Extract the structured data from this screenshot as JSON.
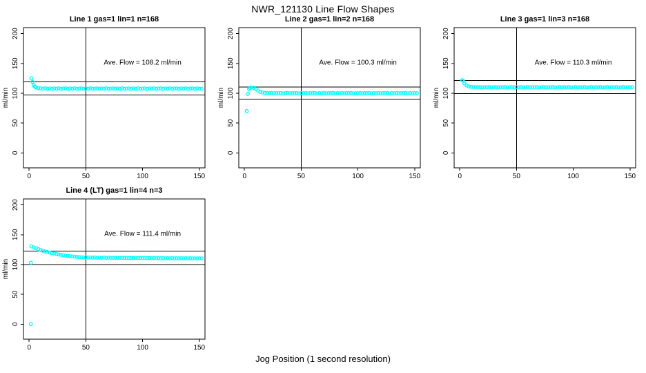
{
  "figure": {
    "title": "NWR_121130  Line Flow Shapes",
    "xlabel": "Jog Position (1 second resolution)",
    "background": "#ffffff",
    "point_color": "#00ffff",
    "axis_color": "#000000"
  },
  "chart_data": [
    {
      "type": "scatter",
      "title": "Line 1 gas=1 lin=1 n=168",
      "ylabel": "ml/min",
      "annotation": "Ave. Flow =  108.2  ml/min",
      "ave_flow": 108.2,
      "n": 168,
      "xticks": [
        0,
        50,
        100,
        150
      ],
      "yticks": [
        0,
        50,
        100,
        150,
        200
      ],
      "xlim": [
        -5,
        155
      ],
      "ylim": [
        -25,
        210
      ],
      "ref_lines": [
        97.4,
        119.0
      ],
      "vline": 50,
      "annotation_pos": [
        100,
        148
      ],
      "points": [
        [
          2,
          125
        ],
        [
          3,
          119
        ],
        [
          4,
          113.5
        ],
        [
          5,
          111.2
        ],
        [
          6,
          110
        ],
        [
          8,
          108.6
        ],
        [
          10,
          108.1
        ],
        [
          12,
          107.9
        ],
        [
          14,
          108.2
        ],
        [
          16,
          107.6
        ],
        [
          18,
          108
        ],
        [
          20,
          107.5
        ],
        [
          22,
          108.1
        ],
        [
          24,
          107.8
        ],
        [
          26,
          108.3
        ],
        [
          28,
          107.5
        ],
        [
          30,
          107.9
        ],
        [
          32,
          108.2
        ],
        [
          34,
          107.6
        ],
        [
          36,
          108
        ],
        [
          38,
          107.7
        ],
        [
          40,
          108.2
        ],
        [
          42,
          107.5
        ],
        [
          44,
          107.9
        ],
        [
          46,
          108.1
        ],
        [
          48,
          107.6
        ],
        [
          50,
          108
        ],
        [
          52,
          107.8
        ],
        [
          54,
          108.2
        ],
        [
          56,
          107.5
        ],
        [
          58,
          107.9
        ],
        [
          60,
          108.1
        ],
        [
          62,
          107.6
        ],
        [
          64,
          108
        ],
        [
          66,
          107.7
        ],
        [
          68,
          108.2
        ],
        [
          70,
          107.5
        ],
        [
          72,
          107.9
        ],
        [
          74,
          108.1
        ],
        [
          76,
          107.6
        ],
        [
          78,
          108
        ],
        [
          80,
          107.8
        ],
        [
          82,
          108.2
        ],
        [
          84,
          107.5
        ],
        [
          86,
          107.9
        ],
        [
          88,
          108.1
        ],
        [
          90,
          107.6
        ],
        [
          92,
          108
        ],
        [
          94,
          107.7
        ],
        [
          96,
          108.2
        ],
        [
          98,
          107.5
        ],
        [
          100,
          107.9
        ],
        [
          102,
          108.1
        ],
        [
          104,
          107.6
        ],
        [
          106,
          108
        ],
        [
          108,
          107.8
        ],
        [
          110,
          108.2
        ],
        [
          112,
          107.5
        ],
        [
          114,
          107.9
        ],
        [
          116,
          108.1
        ],
        [
          118,
          107.6
        ],
        [
          120,
          108
        ],
        [
          122,
          107.7
        ],
        [
          124,
          108.2
        ],
        [
          126,
          107.5
        ],
        [
          128,
          107.9
        ],
        [
          130,
          108.1
        ],
        [
          132,
          107.6
        ],
        [
          134,
          108
        ],
        [
          136,
          107.8
        ],
        [
          138,
          108.2
        ],
        [
          140,
          107.5
        ],
        [
          142,
          107.9
        ],
        [
          144,
          108.1
        ],
        [
          146,
          107.6
        ],
        [
          148,
          108
        ],
        [
          150,
          107.7
        ],
        [
          152,
          107.8
        ]
      ]
    },
    {
      "type": "scatter",
      "title": "Line 2 gas=1 lin=2 n=168",
      "ylabel": "ml/min",
      "annotation": "Ave. Flow =  100.3  ml/min",
      "ave_flow": 100.3,
      "n": 168,
      "xticks": [
        0,
        50,
        100,
        150
      ],
      "yticks": [
        0,
        50,
        100,
        150,
        200
      ],
      "xlim": [
        -5,
        155
      ],
      "ylim": [
        -25,
        210
      ],
      "ref_lines": [
        90.3,
        110.3
      ],
      "vline": 50,
      "annotation_pos": [
        100,
        148
      ],
      "points": [
        [
          2,
          70
        ],
        [
          3,
          99
        ],
        [
          4,
          107
        ],
        [
          5,
          109
        ],
        [
          6,
          109.5
        ],
        [
          8,
          109
        ],
        [
          10,
          107
        ],
        [
          12,
          104.5
        ],
        [
          14,
          102.5
        ],
        [
          16,
          101.3
        ],
        [
          18,
          100.7
        ],
        [
          20,
          100.4
        ],
        [
          22,
          100.1
        ],
        [
          24,
          100.5
        ],
        [
          26,
          99.9
        ],
        [
          28,
          100.3
        ],
        [
          30,
          100
        ],
        [
          32,
          100.4
        ],
        [
          34,
          99.8
        ],
        [
          36,
          100.2
        ],
        [
          38,
          100.5
        ],
        [
          40,
          99.9
        ],
        [
          42,
          100.3
        ],
        [
          44,
          100.1
        ],
        [
          46,
          100.4
        ],
        [
          48,
          99.8
        ],
        [
          50,
          100.2
        ],
        [
          52,
          100
        ],
        [
          54,
          100.4
        ],
        [
          56,
          99.9
        ],
        [
          58,
          100.3
        ],
        [
          60,
          100.1
        ],
        [
          62,
          100.5
        ],
        [
          64,
          99.8
        ],
        [
          66,
          100.2
        ],
        [
          68,
          100
        ],
        [
          70,
          100.4
        ],
        [
          72,
          99.9
        ],
        [
          74,
          100.3
        ],
        [
          76,
          100.1
        ],
        [
          78,
          100.5
        ],
        [
          80,
          99.8
        ],
        [
          82,
          100.2
        ],
        [
          84,
          100
        ],
        [
          86,
          100.4
        ],
        [
          88,
          99.9
        ],
        [
          90,
          100.3
        ],
        [
          92,
          100.1
        ],
        [
          94,
          100.5
        ],
        [
          96,
          99.8
        ],
        [
          98,
          100.2
        ],
        [
          100,
          100
        ],
        [
          102,
          100.4
        ],
        [
          104,
          99.9
        ],
        [
          106,
          100.3
        ],
        [
          108,
          100.1
        ],
        [
          110,
          100.5
        ],
        [
          112,
          99.8
        ],
        [
          114,
          100.2
        ],
        [
          116,
          100
        ],
        [
          118,
          100.4
        ],
        [
          120,
          99.9
        ],
        [
          122,
          100.3
        ],
        [
          124,
          100.1
        ],
        [
          126,
          100.5
        ],
        [
          128,
          99.8
        ],
        [
          130,
          100.2
        ],
        [
          132,
          100
        ],
        [
          134,
          100.4
        ],
        [
          136,
          99.9
        ],
        [
          138,
          100.3
        ],
        [
          140,
          100.1
        ],
        [
          142,
          100.5
        ],
        [
          144,
          99.8
        ],
        [
          146,
          100.2
        ],
        [
          148,
          100
        ],
        [
          150,
          100.3
        ],
        [
          152,
          100.1
        ]
      ]
    },
    {
      "type": "scatter",
      "title": "Line 3 gas=1 lin=3 n=168",
      "ylabel": "ml/min",
      "annotation": "Ave. Flow =  110.3  ml/min",
      "ave_flow": 110.3,
      "n": 168,
      "xticks": [
        0,
        50,
        100,
        150
      ],
      "yticks": [
        0,
        50,
        100,
        150,
        200
      ],
      "xlim": [
        -5,
        155
      ],
      "ylim": [
        -25,
        210
      ],
      "ref_lines": [
        99.3,
        121.3
      ],
      "vline": 50,
      "annotation_pos": [
        100,
        148
      ],
      "points": [
        [
          2,
          122
        ],
        [
          3,
          121
        ],
        [
          4,
          116.5
        ],
        [
          6,
          113
        ],
        [
          8,
          111.5
        ],
        [
          10,
          110.8
        ],
        [
          12,
          110.4
        ],
        [
          14,
          110.6
        ],
        [
          16,
          110.1
        ],
        [
          18,
          110.4
        ],
        [
          20,
          109.9
        ],
        [
          22,
          110.3
        ],
        [
          24,
          110.1
        ],
        [
          26,
          110.5
        ],
        [
          28,
          109.8
        ],
        [
          30,
          110.2
        ],
        [
          32,
          110.4
        ],
        [
          34,
          109.9
        ],
        [
          36,
          110.3
        ],
        [
          38,
          110
        ],
        [
          40,
          110.4
        ],
        [
          42,
          109.8
        ],
        [
          44,
          110.2
        ],
        [
          46,
          110.5
        ],
        [
          48,
          109.9
        ],
        [
          50,
          110.3
        ],
        [
          52,
          110.1
        ],
        [
          54,
          110.4
        ],
        [
          56,
          109.8
        ],
        [
          58,
          110.2
        ],
        [
          60,
          110.5
        ],
        [
          62,
          109.9
        ],
        [
          64,
          110.3
        ],
        [
          66,
          110
        ],
        [
          68,
          110.4
        ],
        [
          70,
          109.8
        ],
        [
          72,
          110.2
        ],
        [
          74,
          110.5
        ],
        [
          76,
          109.9
        ],
        [
          78,
          110.3
        ],
        [
          80,
          110.1
        ],
        [
          82,
          110.4
        ],
        [
          84,
          109.8
        ],
        [
          86,
          110.2
        ],
        [
          88,
          110.5
        ],
        [
          90,
          109.9
        ],
        [
          92,
          110.3
        ],
        [
          94,
          110
        ],
        [
          96,
          110.4
        ],
        [
          98,
          109.8
        ],
        [
          100,
          110.2
        ],
        [
          102,
          110.5
        ],
        [
          104,
          109.9
        ],
        [
          106,
          110.3
        ],
        [
          108,
          110.1
        ],
        [
          110,
          110.4
        ],
        [
          112,
          109.8
        ],
        [
          114,
          110.2
        ],
        [
          116,
          110.5
        ],
        [
          118,
          109.9
        ],
        [
          120,
          110.3
        ],
        [
          122,
          110
        ],
        [
          124,
          110.4
        ],
        [
          126,
          109.8
        ],
        [
          128,
          110.2
        ],
        [
          130,
          110.5
        ],
        [
          132,
          109.9
        ],
        [
          134,
          110.3
        ],
        [
          136,
          110.1
        ],
        [
          138,
          110.4
        ],
        [
          140,
          109.8
        ],
        [
          142,
          110.2
        ],
        [
          144,
          110.5
        ],
        [
          146,
          109.9
        ],
        [
          148,
          110.3
        ],
        [
          150,
          110
        ],
        [
          152,
          110.2
        ]
      ]
    },
    {
      "type": "scatter",
      "title": "Line 4 (LT) gas=1 lin=4 n=3",
      "ylabel": "ml/min",
      "annotation": "Ave. Flow =  111.4  ml/min",
      "ave_flow": 111.4,
      "n": 3,
      "xticks": [
        0,
        50,
        100,
        150
      ],
      "yticks": [
        0,
        50,
        100,
        150,
        200
      ],
      "xlim": [
        -5,
        155
      ],
      "ylim": [
        -25,
        210
      ],
      "ref_lines": [
        100.3,
        122.5
      ],
      "vline": 50,
      "annotation_pos": [
        100,
        148
      ],
      "points": [
        [
          1.5,
          0
        ],
        [
          1.5,
          103
        ],
        [
          2,
          130.5
        ],
        [
          4,
          128.9
        ],
        [
          6,
          127.3
        ],
        [
          8,
          125.9
        ],
        [
          10,
          124.6
        ],
        [
          12,
          123.4
        ],
        [
          14,
          122.2
        ],
        [
          16,
          121.2
        ],
        [
          18,
          120.2
        ],
        [
          20,
          119.3
        ],
        [
          22,
          118.5
        ],
        [
          24,
          117.7
        ],
        [
          26,
          117
        ],
        [
          28,
          116.3
        ],
        [
          30,
          115.7
        ],
        [
          32,
          115.1
        ],
        [
          34,
          114.6
        ],
        [
          36,
          114.1
        ],
        [
          38,
          113.7
        ],
        [
          40,
          113.3
        ],
        [
          42,
          112.9
        ],
        [
          44,
          112.6
        ],
        [
          46,
          112.3
        ],
        [
          48,
          112
        ],
        [
          50,
          112.2
        ],
        [
          52,
          111.8
        ],
        [
          54,
          112
        ],
        [
          56,
          111.6
        ],
        [
          58,
          111.9
        ],
        [
          60,
          111.5
        ],
        [
          62,
          111.8
        ],
        [
          64,
          111.4
        ],
        [
          66,
          111.7
        ],
        [
          68,
          111.3
        ],
        [
          70,
          111.6
        ],
        [
          72,
          111.2
        ],
        [
          74,
          111.5
        ],
        [
          76,
          111.1
        ],
        [
          78,
          111.4
        ],
        [
          80,
          111.1
        ],
        [
          82,
          111.4
        ],
        [
          84,
          111
        ],
        [
          86,
          111.3
        ],
        [
          88,
          110.9
        ],
        [
          90,
          111.2
        ],
        [
          92,
          110.9
        ],
        [
          94,
          111.2
        ],
        [
          96,
          110.8
        ],
        [
          98,
          111.1
        ],
        [
          100,
          110.8
        ],
        [
          102,
          111.1
        ],
        [
          104,
          110.7
        ],
        [
          106,
          111
        ],
        [
          108,
          110.7
        ],
        [
          110,
          111
        ],
        [
          112,
          110.6
        ],
        [
          114,
          110.9
        ],
        [
          116,
          110.6
        ],
        [
          118,
          110.9
        ],
        [
          120,
          110.5
        ],
        [
          122,
          110.8
        ],
        [
          124,
          110.5
        ],
        [
          126,
          110.8
        ],
        [
          128,
          110.5
        ],
        [
          130,
          110.7
        ],
        [
          132,
          110.4
        ],
        [
          134,
          110.7
        ],
        [
          136,
          110.4
        ],
        [
          138,
          110.6
        ],
        [
          140,
          110.4
        ],
        [
          142,
          110.6
        ],
        [
          144,
          110.3
        ],
        [
          146,
          110.5
        ],
        [
          148,
          110.3
        ],
        [
          150,
          110.5
        ],
        [
          152,
          110.4
        ]
      ]
    }
  ]
}
